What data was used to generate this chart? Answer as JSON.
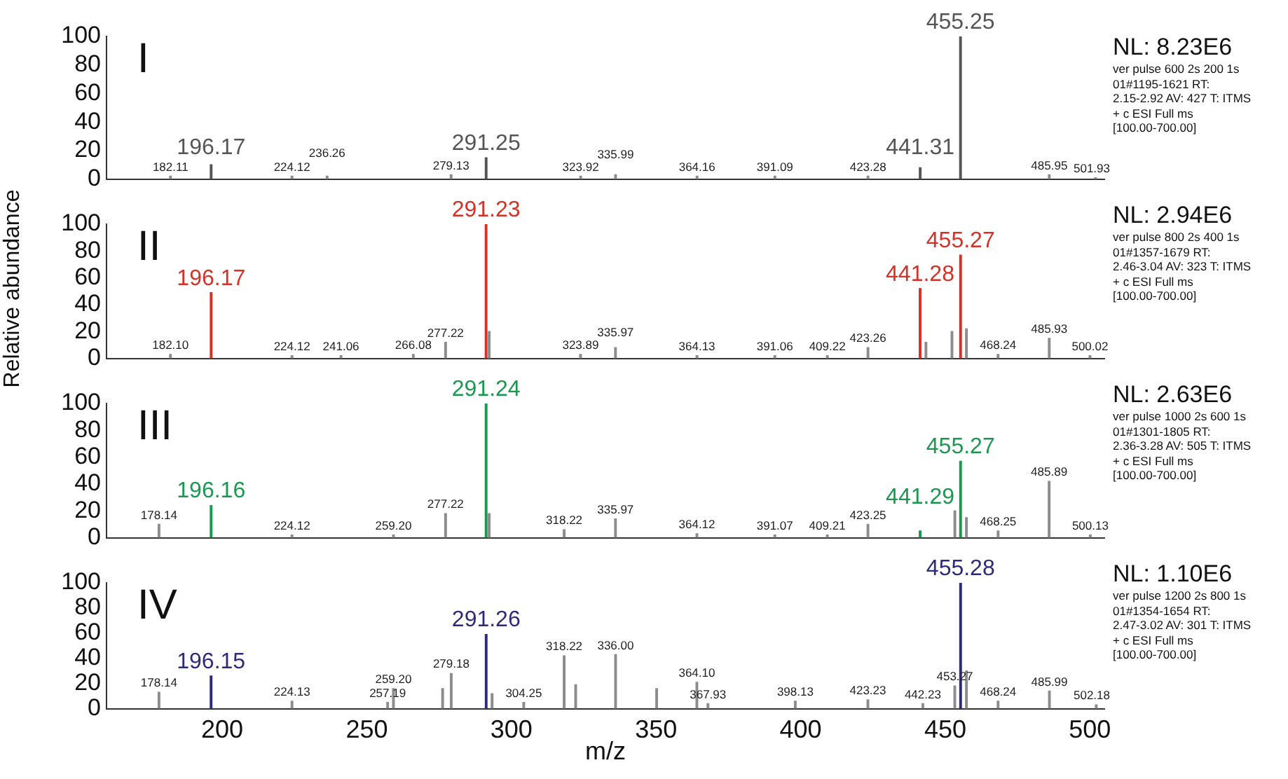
{
  "chart_data": [
    {
      "type": "bar",
      "title": "I",
      "xlim": [
        160,
        505
      ],
      "xticks": [
        200,
        250,
        300,
        350,
        400,
        450,
        500
      ],
      "ylim": [
        0,
        100
      ],
      "yticks": [
        0,
        20,
        40,
        60,
        80,
        100
      ],
      "tick_labels": "y",
      "series": [
        {
          "color": "#8c8c8c",
          "x": [
            182.11,
            196.17,
            224.12,
            236.26,
            279.13,
            291.25,
            323.92,
            335.99,
            364.16,
            391.09,
            423.28,
            441.31,
            455.25,
            485.95,
            501.93
          ],
          "values": [
            2,
            10,
            2,
            2,
            3,
            15,
            2,
            3,
            2,
            2,
            2,
            8,
            100,
            3,
            1
          ],
          "colors": [
            "#8c8c8c",
            "#555555",
            "#8c8c8c",
            "#8c8c8c",
            "#8c8c8c",
            "#555555",
            "#8c8c8c",
            "#8c8c8c",
            "#8c8c8c",
            "#8c8c8c",
            "#8c8c8c",
            "#555555",
            "#555555",
            "#8c8c8c",
            "#8c8c8c"
          ]
        }
      ],
      "annotations": [
        {
          "text": "196.17",
          "x": 196.17,
          "y": 10
        },
        {
          "text": "291.25",
          "x": 291.25,
          "y": 15
        },
        {
          "text": "441.31",
          "x": 441.31,
          "y": 8
        },
        {
          "text": "455.25",
          "x": 455.25,
          "y": 100
        },
        {
          "text": "182.11",
          "x": 182.11,
          "y": 2
        },
        {
          "text": "224.12",
          "x": 224.12,
          "y": 2
        },
        {
          "text": "236.26",
          "x": 236.26,
          "y": 2
        },
        {
          "text": "279.13",
          "x": 279.13,
          "y": 3
        },
        {
          "text": "323.92",
          "x": 323.92,
          "y": 2
        },
        {
          "text": "335.99",
          "x": 335.99,
          "y": 3
        },
        {
          "text": "364.16",
          "x": 364.16,
          "y": 2
        },
        {
          "text": "391.09",
          "x": 391.09,
          "y": 2
        },
        {
          "text": "423.28",
          "x": 423.28,
          "y": 2
        },
        {
          "text": "485.95",
          "x": 485.95,
          "y": 3
        },
        {
          "text": "501.93",
          "x": 501.93,
          "y": 1
        },
        "NL: 8.23E6",
        "ver pulse 600 2s 200 1s",
        "01#1195-1621  RT:",
        "2.15-2.92  AV: 427 T: ITMS",
        "+ c ESI Full ms",
        "[100.00-700.00]"
      ]
    },
    {
      "type": "bar",
      "title": "II",
      "ylabel": "Relative abundance",
      "xlim": [
        160,
        505
      ],
      "xticks": [
        200,
        250,
        300,
        350,
        400,
        450,
        500
      ],
      "ylim": [
        0,
        100
      ],
      "yticks": [
        0,
        20,
        40,
        60,
        80,
        100
      ],
      "tick_labels": "y",
      "series": [
        {
          "color": "#8c8c8c",
          "x": [
            182.1,
            196.17,
            224.12,
            241.06,
            266.08,
            277.22,
            291.23,
            292.3,
            323.89,
            335.97,
            364.13,
            391.06,
            409.22,
            423.26,
            441.28,
            443.3,
            452.3,
            455.27,
            457.3,
            468.24,
            485.93,
            500.02
          ],
          "values": [
            3,
            49,
            2,
            2,
            3,
            12,
            100,
            20,
            3,
            8,
            2,
            2,
            2,
            8,
            52,
            12,
            20,
            77,
            22,
            3,
            15,
            2
          ],
          "colors": [
            "#8c8c8c",
            "#d73027",
            "#8c8c8c",
            "#8c8c8c",
            "#8c8c8c",
            "#8c8c8c",
            "#d73027",
            "#8c8c8c",
            "#8c8c8c",
            "#8c8c8c",
            "#8c8c8c",
            "#8c8c8c",
            "#8c8c8c",
            "#8c8c8c",
            "#d73027",
            "#8c8c8c",
            "#8c8c8c",
            "#d73027",
            "#8c8c8c",
            "#8c8c8c",
            "#8c8c8c",
            "#8c8c8c"
          ]
        }
      ],
      "annotations": [
        {
          "text": "196.17",
          "x": 196.17,
          "y": 49
        },
        {
          "text": "291.23",
          "x": 291.23,
          "y": 100
        },
        {
          "text": "441.28",
          "x": 441.28,
          "y": 52
        },
        {
          "text": "455.27",
          "x": 455.27,
          "y": 77
        },
        {
          "text": "182.10",
          "x": 182.1,
          "y": 3
        },
        {
          "text": "224.12",
          "x": 224.12,
          "y": 2
        },
        {
          "text": "241.06",
          "x": 241.06,
          "y": 2
        },
        {
          "text": "266.08",
          "x": 266.08,
          "y": 3
        },
        {
          "text": "277.22",
          "x": 277.22,
          "y": 12
        },
        {
          "text": "323.89",
          "x": 323.89,
          "y": 3
        },
        {
          "text": "335.97",
          "x": 335.97,
          "y": 8
        },
        {
          "text": "364.13",
          "x": 364.13,
          "y": 2
        },
        {
          "text": "391.06",
          "x": 391.06,
          "y": 2
        },
        {
          "text": "409.22",
          "x": 409.22,
          "y": 2
        },
        {
          "text": "423.26",
          "x": 423.26,
          "y": 8
        },
        {
          "text": "468.24",
          "x": 468.24,
          "y": 3
        },
        {
          "text": "485.93",
          "x": 485.93,
          "y": 15
        },
        {
          "text": "500.02",
          "x": 500.02,
          "y": 2
        },
        "NL: 2.94E6",
        "ver pulse 800 2s 400 1s",
        "01#1357-1679  RT:",
        "2.46-3.04  AV: 323 T: ITMS",
        "+ c ESI Full ms",
        "[100.00-700.00]"
      ]
    },
    {
      "type": "bar",
      "title": "III",
      "xlim": [
        160,
        505
      ],
      "xticks": [
        200,
        250,
        300,
        350,
        400,
        450,
        500
      ],
      "ylim": [
        0,
        100
      ],
      "yticks": [
        0,
        20,
        40,
        60,
        80,
        100
      ],
      "tick_labels": "y",
      "series": [
        {
          "color": "#8c8c8c",
          "x": [
            178.14,
            196.16,
            224.12,
            259.2,
            277.22,
            291.24,
            292.3,
            318.22,
            335.97,
            364.12,
            391.07,
            409.21,
            423.25,
            441.29,
            453.3,
            455.27,
            457.3,
            468.25,
            485.89,
            500.13
          ],
          "values": [
            10,
            24,
            2,
            2,
            18,
            100,
            18,
            6,
            14,
            3,
            2,
            2,
            10,
            5,
            20,
            57,
            15,
            5,
            42,
            2
          ],
          "colors": [
            "#8c8c8c",
            "#1a9850",
            "#8c8c8c",
            "#8c8c8c",
            "#8c8c8c",
            "#1a9850",
            "#8c8c8c",
            "#8c8c8c",
            "#8c8c8c",
            "#8c8c8c",
            "#8c8c8c",
            "#8c8c8c",
            "#8c8c8c",
            "#1a9850",
            "#8c8c8c",
            "#1a9850",
            "#8c8c8c",
            "#8c8c8c",
            "#8c8c8c",
            "#8c8c8c"
          ]
        }
      ],
      "annotations": [
        {
          "text": "196.16",
          "x": 196.16,
          "y": 24
        },
        {
          "text": "291.24",
          "x": 291.24,
          "y": 100
        },
        {
          "text": "441.29",
          "x": 441.29,
          "y": 5
        },
        {
          "text": "455.27",
          "x": 455.27,
          "y": 57
        },
        {
          "text": "178.14",
          "x": 178.14,
          "y": 10
        },
        {
          "text": "224.12",
          "x": 224.12,
          "y": 2
        },
        {
          "text": "259.20",
          "x": 259.2,
          "y": 2
        },
        {
          "text": "277.22",
          "x": 277.22,
          "y": 18
        },
        {
          "text": "318.22",
          "x": 318.22,
          "y": 6
        },
        {
          "text": "335.97",
          "x": 335.97,
          "y": 14
        },
        {
          "text": "364.12",
          "x": 364.12,
          "y": 3
        },
        {
          "text": "391.07",
          "x": 391.07,
          "y": 2
        },
        {
          "text": "409.21",
          "x": 409.21,
          "y": 2
        },
        {
          "text": "423.25",
          "x": 423.25,
          "y": 10
        },
        {
          "text": "468.25",
          "x": 468.25,
          "y": 5
        },
        {
          "text": "485.89",
          "x": 485.89,
          "y": 42
        },
        {
          "text": "500.13",
          "x": 500.13,
          "y": 2
        },
        "NL: 2.63E6",
        "ver pulse 1000 2s 600 1s",
        "01#1301-1805  RT:",
        "2.36-3.28  AV: 505 T: ITMS",
        "+ c ESI Full ms",
        "[100.00-700.00]"
      ]
    },
    {
      "type": "bar",
      "title": "IV",
      "xlabel": "m/z",
      "xlim": [
        160,
        505
      ],
      "xticks": [
        200,
        250,
        300,
        350,
        400,
        450,
        500
      ],
      "ylim": [
        0,
        100
      ],
      "yticks": [
        0,
        20,
        40,
        60,
        80,
        100
      ],
      "series": [
        {
          "color": "#8c8c8c",
          "x": [
            178.14,
            196.15,
            224.13,
            257.19,
            259.2,
            276.2,
            279.18,
            291.26,
            293.3,
            304.25,
            318.22,
            322.2,
            336.0,
            350.2,
            364.1,
            367.93,
            398.13,
            423.23,
            442.23,
            453.27,
            455.28,
            457.3,
            468.24,
            485.99,
            502.18
          ],
          "values": [
            13,
            26,
            6,
            5,
            16,
            16,
            28,
            59,
            12,
            5,
            42,
            19,
            43,
            16,
            21,
            4,
            6,
            7,
            4,
            18,
            100,
            30,
            6,
            14,
            3
          ],
          "colors": [
            "#8c8c8c",
            "#2d2a7a",
            "#8c8c8c",
            "#8c8c8c",
            "#8c8c8c",
            "#8c8c8c",
            "#8c8c8c",
            "#2d2a7a",
            "#8c8c8c",
            "#8c8c8c",
            "#8c8c8c",
            "#8c8c8c",
            "#8c8c8c",
            "#8c8c8c",
            "#8c8c8c",
            "#8c8c8c",
            "#8c8c8c",
            "#8c8c8c",
            "#8c8c8c",
            "#8c8c8c",
            "#2d2a7a",
            "#8c8c8c",
            "#8c8c8c",
            "#8c8c8c",
            "#8c8c8c"
          ]
        }
      ],
      "annotations": [
        {
          "text": "196.15",
          "x": 196.15,
          "y": 26
        },
        {
          "text": "291.26",
          "x": 291.26,
          "y": 59
        },
        {
          "text": "455.28",
          "x": 455.28,
          "y": 100
        },
        {
          "text": "178.14",
          "x": 178.14,
          "y": 13
        },
        {
          "text": "224.13",
          "x": 224.13,
          "y": 6
        },
        {
          "text": "257.19",
          "x": 257.19,
          "y": 5
        },
        {
          "text": "259.20",
          "x": 259.2,
          "y": 16
        },
        {
          "text": "279.18",
          "x": 279.18,
          "y": 28
        },
        {
          "text": "304.25",
          "x": 304.25,
          "y": 5
        },
        {
          "text": "318.22",
          "x": 318.22,
          "y": 42
        },
        {
          "text": "336.00",
          "x": 336.0,
          "y": 43
        },
        {
          "text": "364.10",
          "x": 364.1,
          "y": 21
        },
        {
          "text": "367.93",
          "x": 367.93,
          "y": 4
        },
        {
          "text": "398.13",
          "x": 398.13,
          "y": 6
        },
        {
          "text": "423.23",
          "x": 423.23,
          "y": 7
        },
        {
          "text": "442.23",
          "x": 442.23,
          "y": 4
        },
        {
          "text": "453.27",
          "x": 453.27,
          "y": 18
        },
        {
          "text": "468.24",
          "x": 468.24,
          "y": 6
        },
        {
          "text": "485.99",
          "x": 485.99,
          "y": 14
        },
        {
          "text": "502.18",
          "x": 502.18,
          "y": 3
        },
        "NL: 1.10E6",
        "ver pulse 1200 2s 800 1s",
        "01#1354-1654  RT:",
        "2.47-3.02  AV: 301 T: ITMS",
        "+ c ESI Full ms",
        "[100.00-700.00]"
      ]
    }
  ]
}
